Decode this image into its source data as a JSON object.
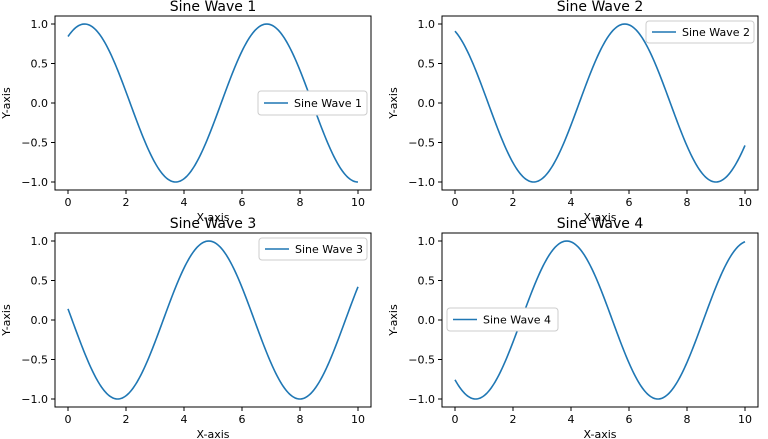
{
  "chart_data": [
    {
      "type": "line",
      "title": "Sine Wave 1",
      "xlabel": "X-axis",
      "ylabel": "Y-axis",
      "xlim": [
        0,
        10
      ],
      "ylim": [
        -1.0,
        1.0
      ],
      "xticks": [
        "0",
        "2",
        "4",
        "6",
        "8",
        "10"
      ],
      "yticks": [
        "1.0",
        "0.5",
        "0.0",
        "−0.5",
        "−1.0"
      ],
      "grid": false,
      "legend_position": "center-right",
      "series": [
        {
          "name": "Sine Wave 1",
          "function": "sin(x + 1)",
          "x_range": [
            0,
            10
          ],
          "color": "#1f77b4"
        }
      ]
    },
    {
      "type": "line",
      "title": "Sine Wave 2",
      "xlabel": "X-axis",
      "ylabel": "Y-axis",
      "xlim": [
        0,
        10
      ],
      "ylim": [
        -1.0,
        1.0
      ],
      "xticks": [
        "0",
        "2",
        "4",
        "6",
        "8",
        "10"
      ],
      "yticks": [
        "1.0",
        "0.5",
        "0.0",
        "−0.5",
        "−1.0"
      ],
      "grid": false,
      "legend_position": "top-right",
      "series": [
        {
          "name": "Sine Wave 2",
          "function": "sin(x + 2)",
          "x_range": [
            0,
            10
          ],
          "color": "#1f77b4"
        }
      ]
    },
    {
      "type": "line",
      "title": "Sine Wave 3",
      "xlabel": "X-axis",
      "ylabel": "Y-axis",
      "xlim": [
        0,
        10
      ],
      "ylim": [
        -1.0,
        1.0
      ],
      "xticks": [
        "0",
        "2",
        "4",
        "6",
        "8",
        "10"
      ],
      "yticks": [
        "1.0",
        "0.5",
        "0.0",
        "−0.5",
        "−1.0"
      ],
      "grid": false,
      "legend_position": "top-right",
      "series": [
        {
          "name": "Sine Wave 3",
          "function": "sin(x + 3)",
          "x_range": [
            0,
            10
          ],
          "color": "#1f77b4"
        }
      ]
    },
    {
      "type": "line",
      "title": "Sine Wave 4",
      "xlabel": "X-axis",
      "ylabel": "Y-axis",
      "xlim": [
        0,
        10
      ],
      "ylim": [
        -1.0,
        1.0
      ],
      "xticks": [
        "0",
        "2",
        "4",
        "6",
        "8",
        "10"
      ],
      "yticks": [
        "1.0",
        "0.5",
        "0.0",
        "−0.5",
        "−1.0"
      ],
      "grid": false,
      "legend_position": "center-left",
      "series": [
        {
          "name": "Sine Wave 4",
          "function": "sin(x + 4)",
          "x_range": [
            0,
            10
          ],
          "color": "#1f77b4"
        }
      ]
    }
  ]
}
